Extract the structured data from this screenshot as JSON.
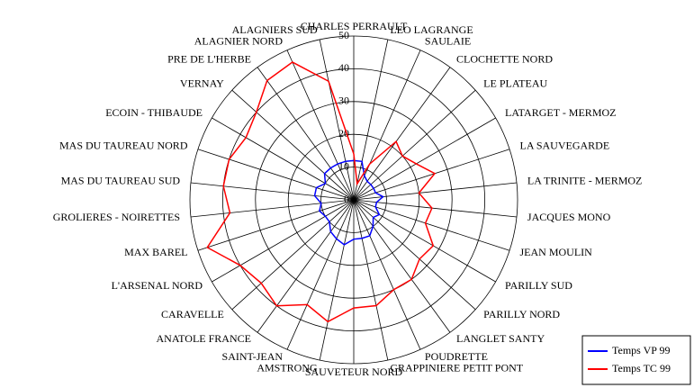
{
  "chart_data": {
    "type": "radar",
    "categories": [
      "CHARLES PERRAULT",
      "LEO LAGRANGE",
      "SAULAIE",
      "CLOCHETTE NORD",
      "LE PLATEAU",
      "LATARGET - MERMOZ",
      "LA SAUVEGARDE",
      "LA TRINITE - MERMOZ",
      "JACQUES MONO",
      "JEAN MOULIN",
      "PARILLY SUD",
      "PARILLY NORD",
      "LANGLET SANTY",
      "POUDRETTE",
      "GRAPPINIERE PETIT PONT",
      "SAUVETEUR NORD",
      "AMSTRONG",
      "SAINT-JEAN",
      "ANATOLE FRANCE",
      "CARAVELLE",
      "L'ARSENAL NORD",
      "MAX BAREL",
      "GROLIERES - NOIRETTES",
      "MAS DU TAUREAU SUD",
      "MAS DU TAUREAU NORD",
      "ECOIN - THIBAUDE",
      "VERNAY",
      "PRE DE L'HERBE",
      "ALAGNIER NORD",
      "ALAGNIERS SUD"
    ],
    "series": [
      {
        "name": "Temps VP 99",
        "color": "#0000ff",
        "values": [
          12,
          12,
          8,
          7,
          7,
          7,
          7,
          9,
          7,
          7,
          9,
          8,
          10,
          12,
          12,
          12,
          14,
          13,
          12,
          10,
          10,
          11,
          10,
          12,
          12,
          10,
          12,
          12,
          12,
          12
        ]
      },
      {
        "name": "Temps TC 99",
        "color": "#ff0000",
        "values": [
          14,
          5,
          12,
          22,
          20,
          22,
          26,
          20,
          24,
          23,
          28,
          27,
          30,
          30,
          33,
          33,
          38,
          35,
          40,
          38,
          40,
          47,
          38,
          40,
          40,
          38,
          40,
          45,
          46,
          37
        ]
      }
    ],
    "ylim": [
      0,
      50
    ],
    "yticks": [
      0,
      10,
      20,
      30,
      40,
      50
    ],
    "grid": true,
    "legend": "bottom-right"
  }
}
